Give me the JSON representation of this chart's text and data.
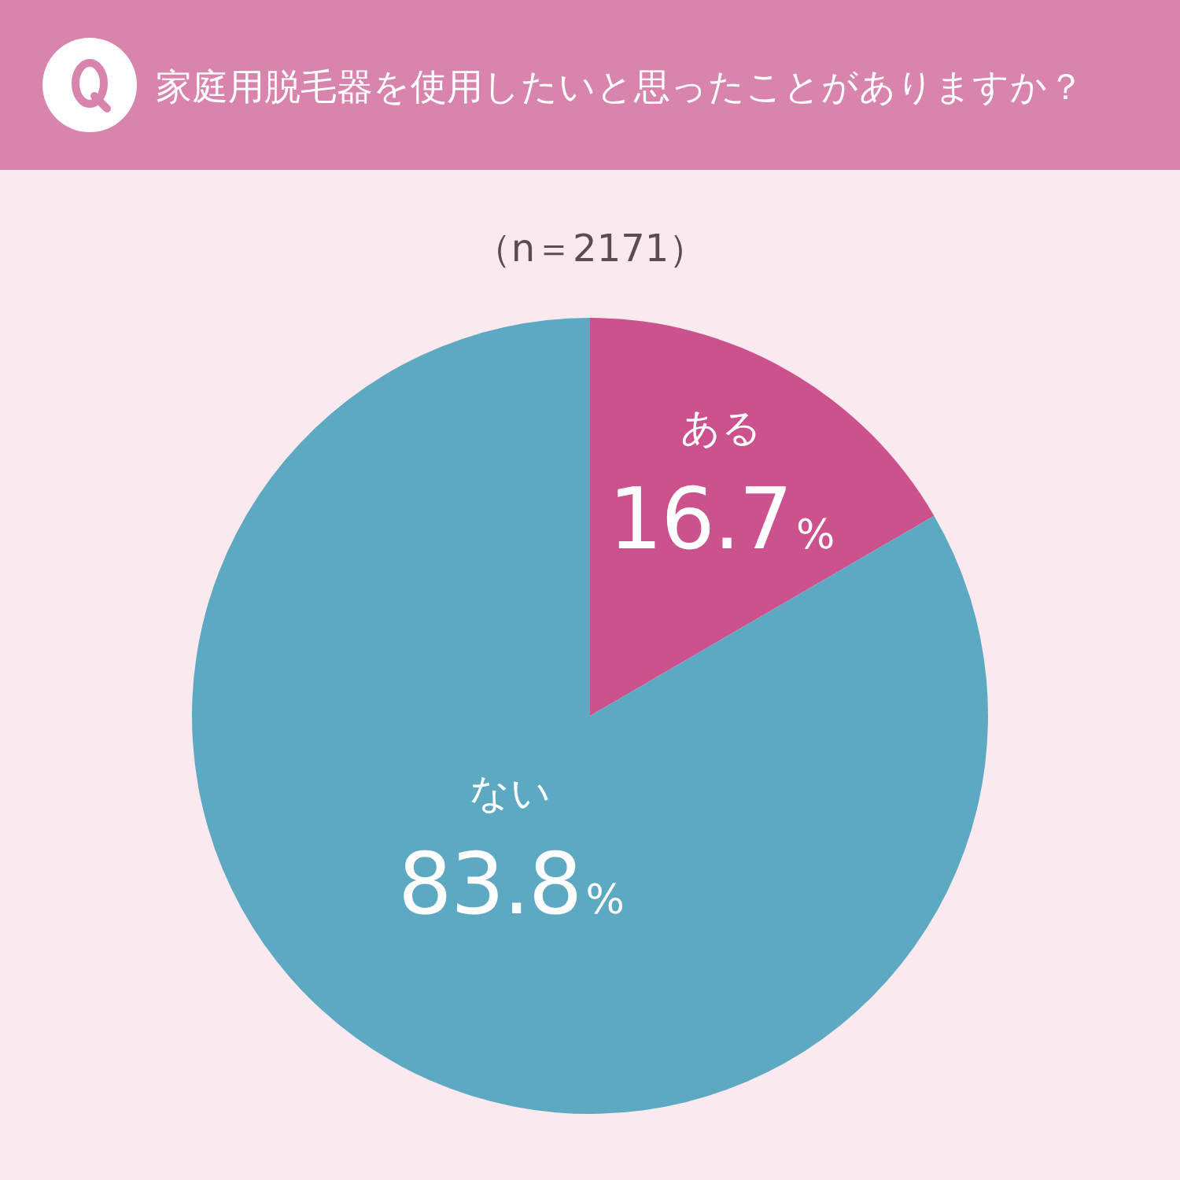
{
  "chart_data": {
    "type": "pie",
    "title": "家庭用脱毛器を使用したいと思ったことがありますか？",
    "subtitle": "（n＝2171）",
    "categories": [
      "ある",
      "ない"
    ],
    "values": [
      16.7,
      83.8
    ],
    "colors": [
      "#cc528e",
      "#5da9c2"
    ],
    "value_labels": [
      "16.7%",
      "83.8%"
    ]
  }
}
